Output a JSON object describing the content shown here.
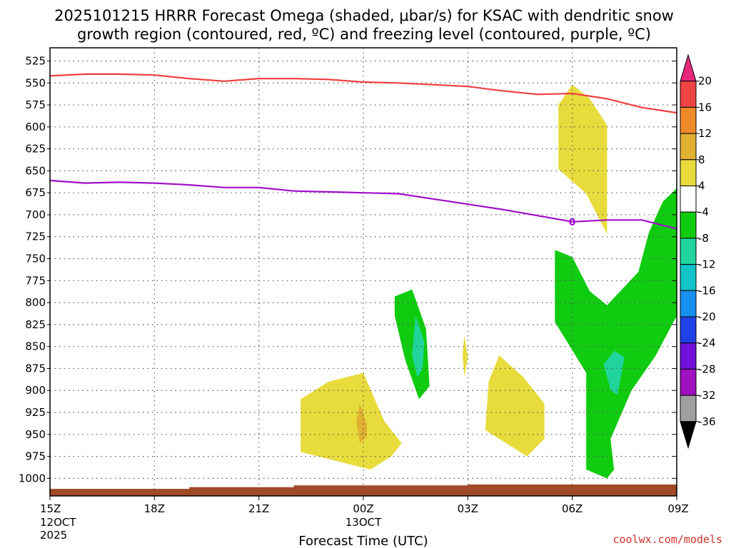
{
  "chart_data": {
    "type": "heatmap",
    "title_line1": "2025101215 HRRR Forecast Omega (shaded, μbar/s) for KSAC with dendritic snow",
    "title_line2": "growth region (contoured, red, ºC) and freezing level (contoured, purple, ºC)",
    "xlabel": "Forecast Time (UTC)",
    "credit": "coolwx.com/models",
    "x_ticks": [
      {
        "hour": 0,
        "label": "15Z",
        "sub1": "12OCT",
        "sub2": "2025"
      },
      {
        "hour": 3,
        "label": "18Z",
        "sub1": "",
        "sub2": ""
      },
      {
        "hour": 6,
        "label": "21Z",
        "sub1": "",
        "sub2": ""
      },
      {
        "hour": 9,
        "label": "00Z",
        "sub1": "13OCT",
        "sub2": ""
      },
      {
        "hour": 12,
        "label": "03Z",
        "sub1": "",
        "sub2": ""
      },
      {
        "hour": 15,
        "label": "06Z",
        "sub1": "",
        "sub2": ""
      },
      {
        "hour": 18,
        "label": "09Z",
        "sub1": "",
        "sub2": ""
      }
    ],
    "xlim": [
      0,
      18
    ],
    "y_ticks": [
      525,
      550,
      575,
      600,
      625,
      650,
      675,
      700,
      725,
      750,
      775,
      800,
      825,
      850,
      875,
      900,
      925,
      950,
      975,
      1000
    ],
    "ylim": [
      510,
      1020
    ],
    "grid": true,
    "colorbar": {
      "labels": [
        "20",
        "16",
        "12",
        "8",
        "4",
        "-4",
        "-8",
        "-12",
        "-16",
        "-20",
        "-24",
        "-28",
        "-32",
        "-36"
      ],
      "colors": [
        "#e8287a",
        "#f04444",
        "#f08a28",
        "#e0b030",
        "#e8dc3c",
        "#ffffff",
        "#10cc10",
        "#20d49c",
        "#10c4c8",
        "#1890f0",
        "#2040e8",
        "#7010d8",
        "#a010c0",
        "#a0a0a0",
        "#000000"
      ]
    },
    "series": [
      {
        "name": "red",
        "color": "#f04040",
        "kind": "dgz_contour",
        "points": [
          [
            0,
            542
          ],
          [
            1,
            540
          ],
          [
            2,
            540
          ],
          [
            3,
            541
          ],
          [
            4,
            545
          ],
          [
            5,
            548
          ],
          [
            6,
            545
          ],
          [
            7,
            545
          ],
          [
            8,
            546
          ],
          [
            9,
            549
          ],
          [
            10,
            550
          ],
          [
            11,
            552
          ],
          [
            12,
            554
          ],
          [
            13,
            559
          ],
          [
            14,
            563
          ],
          [
            15,
            562
          ],
          [
            16,
            568
          ],
          [
            17,
            578
          ],
          [
            18,
            584
          ]
        ]
      },
      {
        "name": "purple",
        "color": "#a010c8",
        "kind": "freezing_level",
        "label": "0",
        "points": [
          [
            0,
            661
          ],
          [
            1,
            664
          ],
          [
            2,
            663
          ],
          [
            3,
            664
          ],
          [
            4,
            666
          ],
          [
            5,
            669
          ],
          [
            6,
            669
          ],
          [
            7,
            673
          ],
          [
            8,
            674
          ],
          [
            9,
            675
          ],
          [
            10,
            676
          ],
          [
            11,
            682
          ],
          [
            12,
            688
          ],
          [
            13,
            694
          ],
          [
            14,
            701
          ],
          [
            15,
            708
          ],
          [
            16,
            706
          ],
          [
            17,
            706
          ],
          [
            18,
            716
          ]
        ]
      }
    ],
    "omega_regions": [
      {
        "value": 4,
        "color": "#e8dc3c",
        "points": [
          [
            15.0,
            552
          ],
          [
            15.5,
            568
          ],
          [
            16.0,
            598
          ],
          [
            16.0,
            660
          ],
          [
            16.0,
            722
          ],
          [
            15.4,
            676
          ],
          [
            14.6,
            648
          ],
          [
            14.6,
            600
          ],
          [
            14.6,
            575
          ]
        ]
      },
      {
        "value": -4,
        "color": "#10cc10",
        "points": [
          [
            18.0,
            670
          ],
          [
            17.6,
            685
          ],
          [
            17.2,
            720
          ],
          [
            16.9,
            765
          ],
          [
            16.0,
            803
          ],
          [
            15.5,
            787
          ],
          [
            15.0,
            748
          ],
          [
            14.5,
            740
          ],
          [
            14.5,
            822
          ],
          [
            15.4,
            880
          ],
          [
            15.4,
            955
          ],
          [
            15.4,
            990
          ],
          [
            16.0,
            1000
          ],
          [
            16.2,
            990
          ],
          [
            16.1,
            955
          ],
          [
            16.7,
            900
          ],
          [
            17.4,
            860
          ],
          [
            18.0,
            815
          ]
        ]
      },
      {
        "value": -8,
        "color": "#20d49c",
        "points": [
          [
            15.9,
            870
          ],
          [
            16.2,
            855
          ],
          [
            16.5,
            862
          ],
          [
            16.3,
            905
          ],
          [
            16.1,
            900
          ]
        ]
      },
      {
        "value": -4,
        "color": "#10cc10",
        "points": [
          [
            9.9,
            793
          ],
          [
            10.4,
            785
          ],
          [
            10.8,
            830
          ],
          [
            10.9,
            895
          ],
          [
            10.6,
            910
          ],
          [
            10.2,
            865
          ],
          [
            9.9,
            815
          ]
        ]
      },
      {
        "value": -8,
        "color": "#20d49c",
        "points": [
          [
            10.5,
            815
          ],
          [
            10.75,
            845
          ],
          [
            10.7,
            875
          ],
          [
            10.55,
            885
          ],
          [
            10.4,
            860
          ]
        ]
      },
      {
        "value": 4,
        "color": "#e8dc3c",
        "points": [
          [
            12.9,
            860
          ],
          [
            13.6,
            885
          ],
          [
            14.2,
            915
          ],
          [
            14.2,
            955
          ],
          [
            13.7,
            975
          ],
          [
            12.5,
            945
          ],
          [
            12.6,
            890
          ]
        ]
      },
      {
        "value": 4,
        "color": "#e8dc3c",
        "points": [
          [
            7.2,
            910
          ],
          [
            8.0,
            890
          ],
          [
            9.0,
            880
          ],
          [
            9.6,
            935
          ],
          [
            10.1,
            960
          ],
          [
            9.8,
            975
          ],
          [
            9.2,
            990
          ],
          [
            7.2,
            970
          ]
        ]
      },
      {
        "value": 8,
        "color": "#e0b030",
        "points": [
          [
            8.9,
            915
          ],
          [
            9.1,
            938
          ],
          [
            9.1,
            952
          ],
          [
            8.9,
            960
          ],
          [
            8.8,
            935
          ]
        ]
      },
      {
        "value": 4,
        "color": "#e8dc3c",
        "points": [
          [
            11.9,
            837
          ],
          [
            12.0,
            862
          ],
          [
            11.9,
            885
          ],
          [
            11.85,
            860
          ]
        ]
      }
    ],
    "terrain": {
      "color": "#a04a28",
      "points": [
        [
          0,
          1012
        ],
        [
          4,
          1010
        ],
        [
          7,
          1008
        ],
        [
          9,
          1008
        ],
        [
          12,
          1007
        ],
        [
          18,
          1007
        ]
      ]
    }
  }
}
